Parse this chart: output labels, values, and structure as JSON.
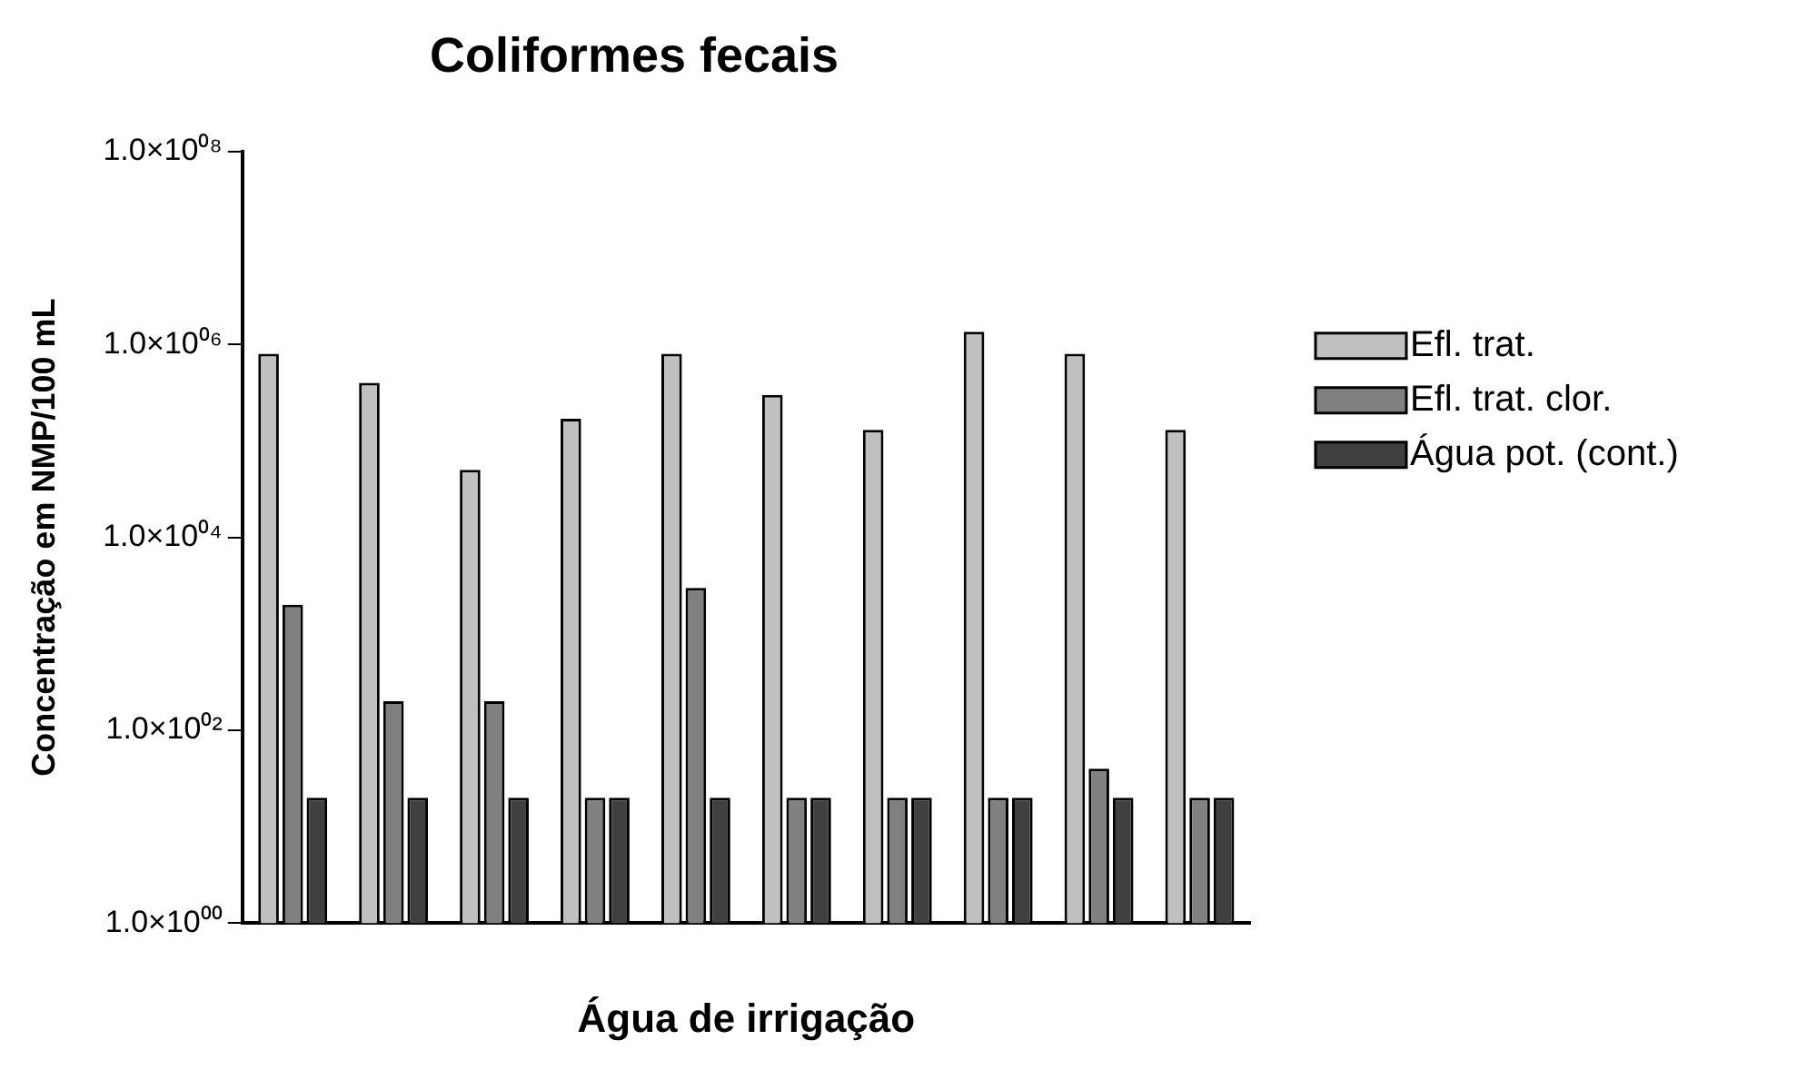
{
  "chart_data": {
    "type": "bar",
    "title": "Coliformes fecais",
    "xlabel": "Água de irrigação",
    "ylabel": "Concentração em NMP/100 mL",
    "categories": [
      null,
      null,
      null,
      null,
      null,
      null,
      null,
      null,
      null,
      null
    ],
    "series": [
      {
        "name": "Efl. trat.",
        "color": "#c0c0c0",
        "values": [
          800000,
          400000,
          50000,
          170000,
          800000,
          300000,
          130000,
          1350000,
          800000,
          130000
        ]
      },
      {
        "name": "Efl. trat. clor.",
        "color": "#808080",
        "values": [
          2000,
          200,
          200,
          20,
          3000,
          20,
          20,
          20,
          40,
          20
        ]
      },
      {
        "name": "Água pot. (cont.)",
        "color": "#404040",
        "values": [
          20,
          20,
          20,
          20,
          20,
          20,
          20,
          20,
          20,
          20
        ]
      }
    ],
    "log": true,
    "ylim": [
      1,
      100000000
    ],
    "yticks": [
      {
        "value": 1,
        "label": "1.0×10⁰⁰"
      },
      {
        "value": 100,
        "label": "1.0×10⁰²"
      },
      {
        "value": 10000,
        "label": "1.0×10⁰⁴"
      },
      {
        "value": 1000000,
        "label": "1.0×10⁰⁶"
      },
      {
        "value": 100000000,
        "label": "1.0×10⁰⁸"
      }
    ],
    "grid": false,
    "legend": "right"
  }
}
